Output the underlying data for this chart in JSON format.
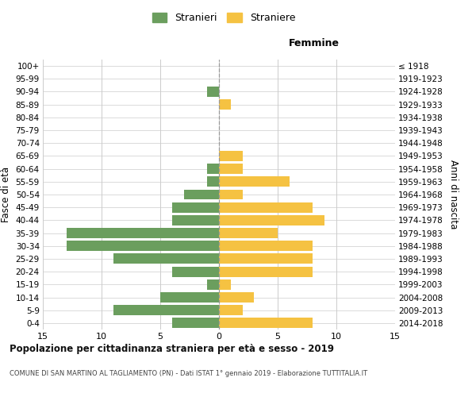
{
  "age_groups": [
    "0-4",
    "5-9",
    "10-14",
    "15-19",
    "20-24",
    "25-29",
    "30-34",
    "35-39",
    "40-44",
    "45-49",
    "50-54",
    "55-59",
    "60-64",
    "65-69",
    "70-74",
    "75-79",
    "80-84",
    "85-89",
    "90-94",
    "95-99",
    "100+"
  ],
  "birth_years": [
    "2014-2018",
    "2009-2013",
    "2004-2008",
    "1999-2003",
    "1994-1998",
    "1989-1993",
    "1984-1988",
    "1979-1983",
    "1974-1978",
    "1969-1973",
    "1964-1968",
    "1959-1963",
    "1954-1958",
    "1949-1953",
    "1944-1948",
    "1939-1943",
    "1934-1938",
    "1929-1933",
    "1924-1928",
    "1919-1923",
    "≤ 1918"
  ],
  "males": [
    4,
    9,
    5,
    1,
    4,
    9,
    13,
    13,
    4,
    4,
    3,
    1,
    1,
    0,
    0,
    0,
    0,
    0,
    1,
    0,
    0
  ],
  "females": [
    8,
    2,
    3,
    1,
    8,
    8,
    8,
    5,
    9,
    8,
    2,
    6,
    2,
    2,
    0,
    0,
    0,
    1,
    0,
    0,
    0
  ],
  "male_color": "#6b9e5e",
  "female_color": "#f5c242",
  "title": "Popolazione per cittadinanza straniera per età e sesso - 2019",
  "subtitle": "COMUNE DI SAN MARTINO AL TAGLIAMENTO (PN) - Dati ISTAT 1° gennaio 2019 - Elaborazione TUTTITALIA.IT",
  "xlabel_right": "Femmine",
  "ylabel_left": "Fasce di età",
  "ylabel_right": "Anni di nascita",
  "legend_male": "Stranieri",
  "legend_female": "Straniere",
  "xlim": 15,
  "bg_color": "#ffffff",
  "grid_color": "#cccccc",
  "bar_height": 0.8
}
